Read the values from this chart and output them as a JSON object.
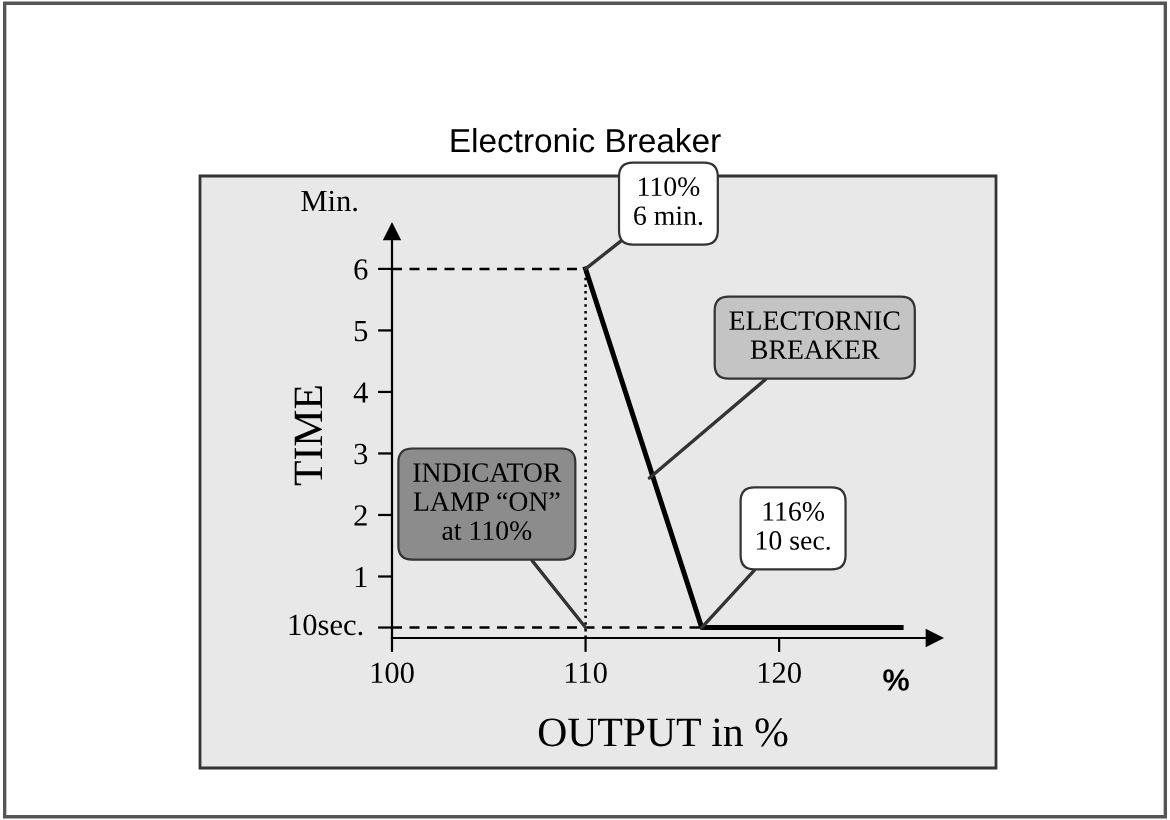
{
  "chart_data": {
    "type": "line",
    "title": "Electronic Breaker",
    "xlabel": "OUTPUT in %",
    "ylabel": "TIME",
    "x": [
      110,
      116,
      126.3
    ],
    "series": [
      {
        "color": "#000000",
        "values": [
          6,
          0.17,
          0.17
        ]
      },
      {
        "type": "line",
        "x": [
          100,
          110
        ],
        "values": [
          6,
          6
        ],
        "color": "#000000",
        "line_style": "dashed"
      },
      {
        "type": "line",
        "x": [
          100,
          116
        ],
        "values": [
          0.17,
          0.17
        ],
        "color": "#000000",
        "line_style": "dashed"
      },
      {
        "type": "line",
        "x": [
          110,
          110
        ],
        "values": [
          0,
          6
        ],
        "color": "#000000",
        "line_style": "dotted"
      }
    ],
    "xlim": [
      100,
      128
    ],
    "ylim": [
      0,
      6.6
    ],
    "xticks": [
      100,
      110,
      120
    ],
    "yticks": [
      {
        "value": 0.17,
        "label": null
      },
      1,
      2,
      3,
      4,
      5,
      6
    ],
    "grid": false,
    "legend": false,
    "marker": "none",
    "annotations": [
      {
        "text": "110%\n6 min.",
        "x": 110,
        "y": 6
      },
      {
        "text": "ELECTORNIC\nBREAKER",
        "x": 113.3,
        "y": 2.6
      },
      {
        "text": "INDICATOR\nLAMP “ON”\nat 110%",
        "x": 110,
        "y": 0.17
      },
      {
        "text": "116%\n10 sec.",
        "x": 116,
        "y": 0.17
      },
      {
        "text": "10sec.",
        "x": 100,
        "y": 0.17
      },
      "Min.",
      "%"
    ]
  }
}
